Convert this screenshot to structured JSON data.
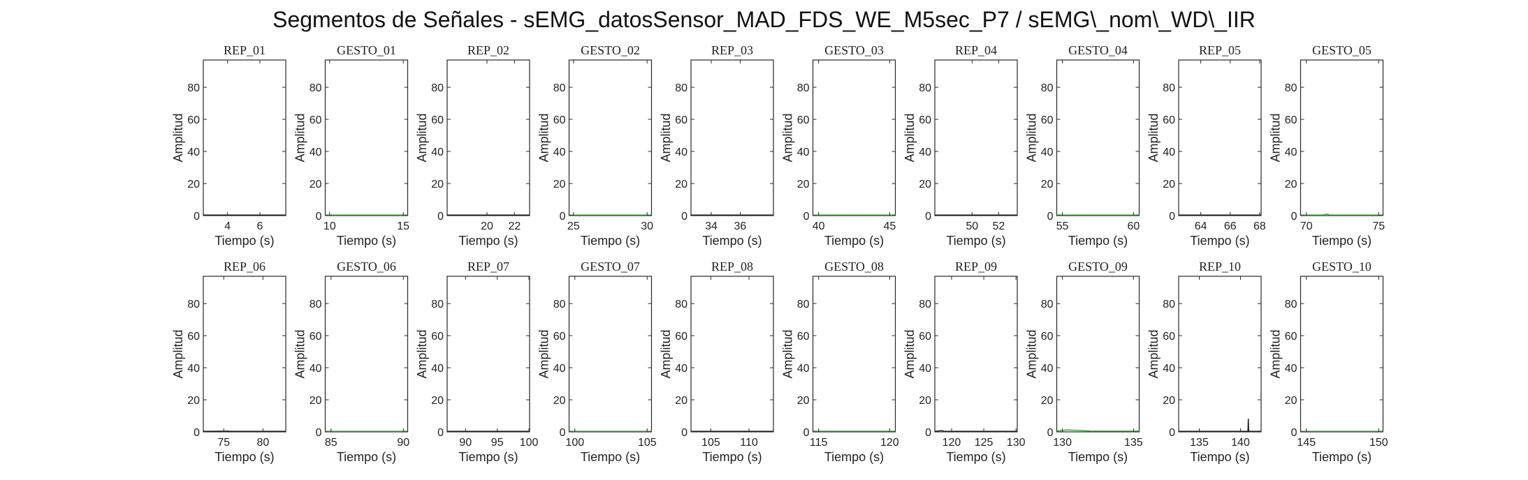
{
  "figure": {
    "title": "Segmentos de Señales - sEMG_datosSensor_MAD_FDS_WE_M5sec_P7 / sEMG\\_nom\\_WD\\_IIR"
  },
  "colors": {
    "rep": "#1a1a1a",
    "gesto": "#2ca02c",
    "axis": "#262626"
  },
  "chart_data": [
    {
      "type": "line",
      "title": "REP_01",
      "xlabel": "Tiempo (s)",
      "ylabel": "Amplitud",
      "xlim": [
        2.5,
        7.6
      ],
      "ylim": [
        0,
        97
      ],
      "xticks": [
        4,
        6
      ],
      "yticks": [
        0,
        20,
        40,
        60,
        80
      ],
      "series": [
        {
          "x": [
            2.5,
            7.6
          ],
          "y": [
            0,
            0
          ]
        }
      ]
    },
    {
      "type": "line",
      "title": "GESTO_01",
      "xlabel": "Tiempo (s)",
      "ylabel": "Amplitud",
      "xlim": [
        9.7,
        15.3
      ],
      "ylim": [
        0,
        97
      ],
      "xticks": [
        10,
        15
      ],
      "yticks": [
        0,
        20,
        40,
        60,
        80
      ],
      "series": [
        {
          "x": [
            9.7,
            15.3
          ],
          "y": [
            0.2,
            0.2
          ]
        }
      ]
    },
    {
      "type": "line",
      "title": "REP_02",
      "xlabel": "Tiempo (s)",
      "ylabel": "Amplitud",
      "xlim": [
        17.1,
        23.1
      ],
      "ylim": [
        0,
        97
      ],
      "xticks": [
        20,
        22
      ],
      "yticks": [
        0,
        20,
        40,
        60,
        80
      ],
      "series": [
        {
          "x": [
            17.1,
            23.1
          ],
          "y": [
            0,
            0
          ]
        }
      ]
    },
    {
      "type": "line",
      "title": "GESTO_02",
      "xlabel": "Tiempo (s)",
      "ylabel": "Amplitud",
      "xlim": [
        24.7,
        30.3
      ],
      "ylim": [
        0,
        97
      ],
      "xticks": [
        25,
        30
      ],
      "yticks": [
        0,
        20,
        40,
        60,
        80
      ],
      "series": [
        {
          "x": [
            24.7,
            30.3
          ],
          "y": [
            0.2,
            0.2
          ]
        }
      ]
    },
    {
      "type": "line",
      "title": "REP_03",
      "xlabel": "Tiempo (s)",
      "ylabel": "Amplitud",
      "xlim": [
        32.6,
        38.3
      ],
      "ylim": [
        0,
        97
      ],
      "xticks": [
        34,
        36
      ],
      "yticks": [
        0,
        20,
        40,
        60,
        80
      ],
      "series": [
        {
          "x": [
            32.6,
            38.3
          ],
          "y": [
            0,
            0
          ]
        }
      ]
    },
    {
      "type": "line",
      "title": "GESTO_03",
      "xlabel": "Tiempo (s)",
      "ylabel": "Amplitud",
      "xlim": [
        39.6,
        45.4
      ],
      "ylim": [
        0,
        97
      ],
      "xticks": [
        40,
        45
      ],
      "yticks": [
        0,
        20,
        40,
        60,
        80
      ],
      "series": [
        {
          "x": [
            39.6,
            45.4
          ],
          "y": [
            0.3,
            0.3
          ]
        }
      ]
    },
    {
      "type": "line",
      "title": "REP_04",
      "xlabel": "Tiempo (s)",
      "ylabel": "Amplitud",
      "xlim": [
        47.2,
        53.4
      ],
      "ylim": [
        0,
        97
      ],
      "xticks": [
        50,
        52
      ],
      "yticks": [
        0,
        20,
        40,
        60,
        80
      ],
      "series": [
        {
          "x": [
            47.2,
            53.4
          ],
          "y": [
            0,
            0
          ]
        }
      ]
    },
    {
      "type": "line",
      "title": "GESTO_04",
      "xlabel": "Tiempo (s)",
      "ylabel": "Amplitud",
      "xlim": [
        54.6,
        60.4
      ],
      "ylim": [
        0,
        97
      ],
      "xticks": [
        55,
        60
      ],
      "yticks": [
        0,
        20,
        40,
        60,
        80
      ],
      "series": [
        {
          "x": [
            54.6,
            60.4
          ],
          "y": [
            0.3,
            0.3
          ]
        }
      ]
    },
    {
      "type": "line",
      "title": "REP_05",
      "xlabel": "Tiempo (s)",
      "ylabel": "Amplitud",
      "xlim": [
        62.5,
        68.1
      ],
      "ylim": [
        0,
        97
      ],
      "xticks": [
        64,
        66,
        68
      ],
      "yticks": [
        0,
        20,
        40,
        60,
        80
      ],
      "series": [
        {
          "x": [
            62.5,
            68.1
          ],
          "y": [
            0,
            0
          ]
        }
      ]
    },
    {
      "type": "line",
      "title": "GESTO_05",
      "xlabel": "Tiempo (s)",
      "ylabel": "Amplitud",
      "xlim": [
        69.6,
        75.3
      ],
      "ylim": [
        0,
        97
      ],
      "xticks": [
        70,
        75
      ],
      "yticks": [
        0,
        20,
        40,
        60,
        80
      ],
      "series": [
        {
          "x": [
            69.6,
            71.2,
            71.4,
            71.6,
            75.3
          ],
          "y": [
            0.3,
            0.3,
            1.0,
            0.3,
            0.3
          ]
        }
      ]
    },
    {
      "type": "line",
      "title": "REP_06",
      "xlabel": "Tiempo (s)",
      "ylabel": "Amplitud",
      "xlim": [
        72.4,
        82.9
      ],
      "ylim": [
        0,
        97
      ],
      "xticks": [
        75,
        80
      ],
      "yticks": [
        0,
        20,
        40,
        60,
        80
      ],
      "series": [
        {
          "x": [
            72.4,
            75.6,
            75.9,
            82.9
          ],
          "y": [
            0,
            0.5,
            0,
            0
          ]
        }
      ]
    },
    {
      "type": "line",
      "title": "GESTO_06",
      "xlabel": "Tiempo (s)",
      "ylabel": "Amplitud",
      "xlim": [
        84.6,
        90.3
      ],
      "ylim": [
        0,
        97
      ],
      "xticks": [
        85,
        90
      ],
      "yticks": [
        0,
        20,
        40,
        60,
        80
      ],
      "series": [
        {
          "x": [
            84.6,
            90.3
          ],
          "y": [
            0.3,
            0.3
          ]
        }
      ]
    },
    {
      "type": "line",
      "title": "REP_07",
      "xlabel": "Tiempo (s)",
      "ylabel": "Amplitud",
      "xlim": [
        87.1,
        100.1
      ],
      "ylim": [
        0,
        97
      ],
      "xticks": [
        90,
        95,
        100
      ],
      "yticks": [
        0,
        20,
        40,
        60,
        80
      ],
      "series": [
        {
          "x": [
            87.1,
            100.1
          ],
          "y": [
            0,
            0
          ]
        }
      ]
    },
    {
      "type": "line",
      "title": "GESTO_07",
      "xlabel": "Tiempo (s)",
      "ylabel": "Amplitud",
      "xlim": [
        99.6,
        105.3
      ],
      "ylim": [
        0,
        97
      ],
      "xticks": [
        100,
        105
      ],
      "yticks": [
        0,
        20,
        40,
        60,
        80
      ],
      "series": [
        {
          "x": [
            99.6,
            105.3
          ],
          "y": [
            0.3,
            0.3
          ]
        }
      ]
    },
    {
      "type": "line",
      "title": "REP_08",
      "xlabel": "Tiempo (s)",
      "ylabel": "Amplitud",
      "xlim": [
        102.4,
        113.2
      ],
      "ylim": [
        0,
        97
      ],
      "xticks": [
        105,
        110
      ],
      "yticks": [
        0,
        20,
        40,
        60,
        80
      ],
      "series": [
        {
          "x": [
            102.4,
            113.2
          ],
          "y": [
            0,
            0
          ]
        }
      ]
    },
    {
      "type": "line",
      "title": "GESTO_08",
      "xlabel": "Tiempo (s)",
      "ylabel": "Amplitud",
      "xlim": [
        114.6,
        120.4
      ],
      "ylim": [
        0,
        97
      ],
      "xticks": [
        115,
        120
      ],
      "yticks": [
        0,
        20,
        40,
        60,
        80
      ],
      "series": [
        {
          "x": [
            114.6,
            120.4
          ],
          "y": [
            0.4,
            0.4
          ]
        }
      ]
    },
    {
      "type": "line",
      "title": "REP_09",
      "xlabel": "Tiempo (s)",
      "ylabel": "Amplitud",
      "xlim": [
        117.4,
        130.2
      ],
      "ylim": [
        0,
        97
      ],
      "xticks": [
        120,
        125,
        130
      ],
      "yticks": [
        0,
        20,
        40,
        60,
        80
      ],
      "series": [
        {
          "x": [
            117.4,
            118.5,
            118.8,
            130.2
          ],
          "y": [
            0,
            0.8,
            0,
            0
          ]
        }
      ]
    },
    {
      "type": "line",
      "title": "GESTO_09",
      "xlabel": "Tiempo (s)",
      "ylabel": "Amplitud",
      "xlim": [
        129.6,
        135.4
      ],
      "ylim": [
        0,
        97
      ],
      "xticks": [
        130,
        135
      ],
      "yticks": [
        0,
        20,
        40,
        60,
        80
      ],
      "series": [
        {
          "x": [
            129.6,
            130.3,
            131.2,
            132.0,
            135.4
          ],
          "y": [
            0.5,
            1.2,
            0.9,
            0.5,
            0.5
          ]
        }
      ]
    },
    {
      "type": "line",
      "title": "REP_10",
      "xlabel": "Tiempo (s)",
      "ylabel": "Amplitud",
      "xlim": [
        132.5,
        142.5
      ],
      "ylim": [
        0,
        97
      ],
      "xticks": [
        135,
        140
      ],
      "yticks": [
        0,
        20,
        40,
        60,
        80
      ],
      "series": [
        {
          "x": [
            132.5,
            140.9,
            140.95,
            141.0,
            142.5
          ],
          "y": [
            0,
            0,
            8.2,
            0,
            0
          ]
        }
      ]
    },
    {
      "type": "line",
      "title": "GESTO_10",
      "xlabel": "Tiempo (s)",
      "ylabel": "Amplitud",
      "xlim": [
        144.6,
        150.3
      ],
      "ylim": [
        0,
        97
      ],
      "xticks": [
        145,
        150
      ],
      "yticks": [
        0,
        20,
        40,
        60,
        80
      ],
      "series": [
        {
          "x": [
            144.6,
            150.3
          ],
          "y": [
            0.3,
            0.3
          ]
        }
      ]
    }
  ]
}
